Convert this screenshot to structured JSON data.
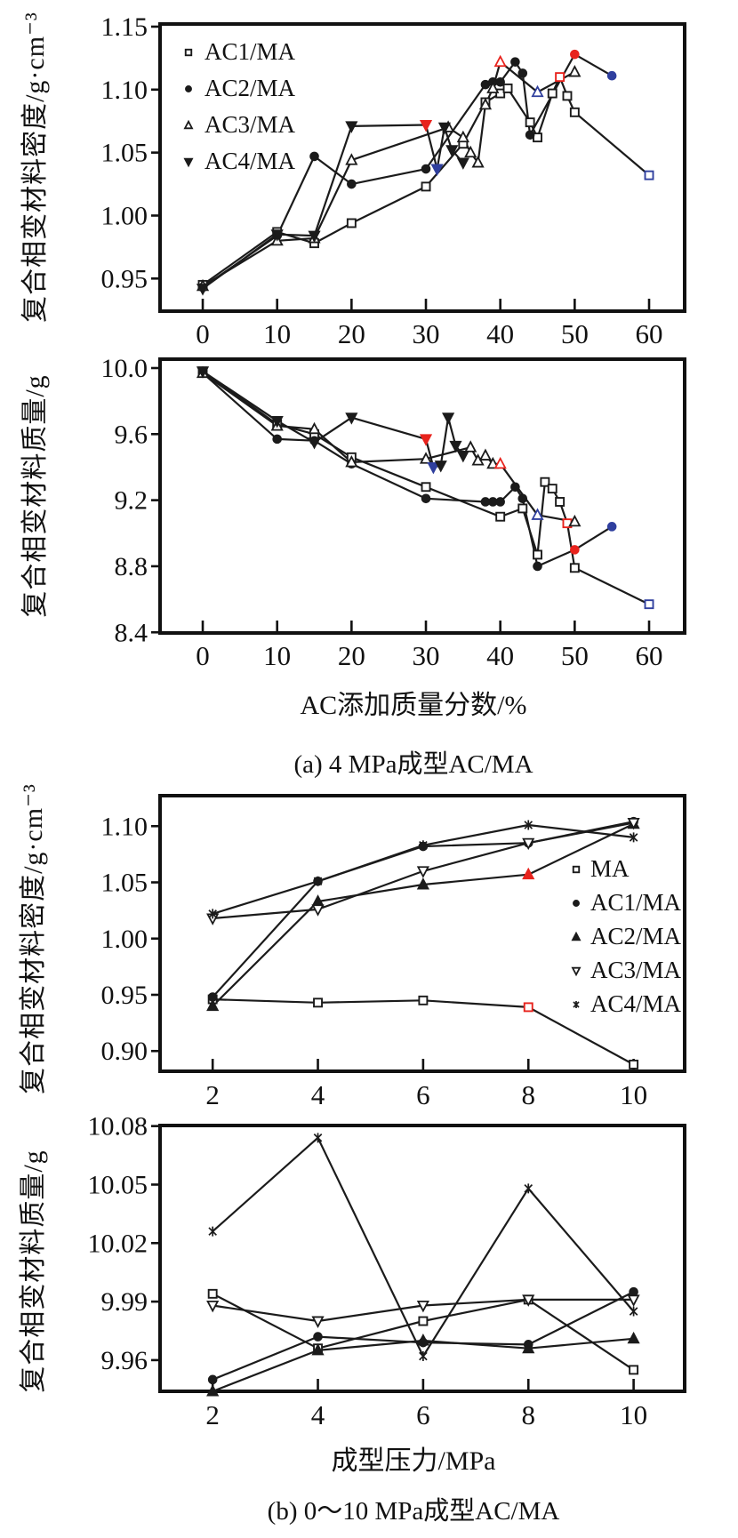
{
  "figure": {
    "background": "#ffffff",
    "colors": {
      "line": "#1b1b1b",
      "red": "#e8231d",
      "blue": "#2f3f9e",
      "text": "#111111"
    }
  },
  "chart_data": [
    {
      "id": "a1",
      "type": "line",
      "title": "",
      "xlabel": "",
      "ylabel": "复合相变材料密度/g·cm⁻³",
      "xlim": [
        -5.74,
        64.78
      ],
      "ylim": [
        0.9241,
        1.1521
      ],
      "grid": false,
      "xticks": [
        {
          "v": 0,
          "label": "0"
        },
        {
          "v": 10,
          "label": "10"
        },
        {
          "v": 20,
          "label": "20"
        },
        {
          "v": 30,
          "label": "30"
        },
        {
          "v": 40,
          "label": "40"
        },
        {
          "v": 50,
          "label": "50"
        },
        {
          "v": 60,
          "label": "60"
        }
      ],
      "yticks": [
        {
          "v": 0.95,
          "label": "0.95"
        },
        {
          "v": 1.0,
          "label": "1.00"
        },
        {
          "v": 1.05,
          "label": "1.05"
        },
        {
          "v": 1.1,
          "label": "1.10"
        },
        {
          "v": 1.15,
          "label": "1.15"
        }
      ],
      "legend": {
        "position": "upper-left",
        "items": [
          {
            "label": "AC1/MA",
            "marker": "square-open"
          },
          {
            "label": "AC2/MA",
            "marker": "circle-filled"
          },
          {
            "label": "AC3/MA",
            "marker": "triangle-up-open"
          },
          {
            "label": "AC4/MA",
            "marker": "triangle-down-filled"
          }
        ]
      },
      "series": [
        {
          "name": "AC1/MA",
          "marker": "square-open",
          "points": [
            {
              "x": 0,
              "y": 0.945
            },
            {
              "x": 10,
              "y": 0.987
            },
            {
              "x": 15,
              "y": 0.978
            },
            {
              "x": 20,
              "y": 0.994
            },
            {
              "x": 30,
              "y": 1.023
            },
            {
              "x": 35,
              "y": 1.057
            },
            {
              "x": 38,
              "y": 1.09
            },
            {
              "x": 40,
              "y": 1.097
            },
            {
              "x": 41,
              "y": 1.101
            },
            {
              "x": 44,
              "y": 1.074
            },
            {
              "x": 45,
              "y": 1.062
            },
            {
              "x": 47,
              "y": 1.097
            },
            {
              "x": 48,
              "y": 1.11,
              "c": "red"
            },
            {
              "x": 49,
              "y": 1.095
            },
            {
              "x": 50,
              "y": 1.082
            },
            {
              "x": 60,
              "y": 1.032,
              "c": "blue"
            }
          ]
        },
        {
          "name": "AC2/MA",
          "marker": "circle-filled",
          "points": [
            {
              "x": 0,
              "y": 0.943
            },
            {
              "x": 10,
              "y": 0.984
            },
            {
              "x": 15,
              "y": 1.047
            },
            {
              "x": 20,
              "y": 1.025
            },
            {
              "x": 30,
              "y": 1.037
            },
            {
              "x": 38,
              "y": 1.104
            },
            {
              "x": 39,
              "y": 1.106
            },
            {
              "x": 40,
              "y": 1.106
            },
            {
              "x": 42,
              "y": 1.122
            },
            {
              "x": 43,
              "y": 1.113
            },
            {
              "x": 44,
              "y": 1.064
            },
            {
              "x": 50,
              "y": 1.128,
              "c": "red"
            },
            {
              "x": 55,
              "y": 1.111,
              "c": "blue"
            }
          ]
        },
        {
          "name": "AC3/MA",
          "marker": "triangle-up-open",
          "points": [
            {
              "x": 0,
              "y": 0.944
            },
            {
              "x": 10,
              "y": 0.98
            },
            {
              "x": 15,
              "y": 0.982
            },
            {
              "x": 20,
              "y": 1.044
            },
            {
              "x": 33,
              "y": 1.07
            },
            {
              "x": 35,
              "y": 1.062
            },
            {
              "x": 36,
              "y": 1.05
            },
            {
              "x": 37,
              "y": 1.042
            },
            {
              "x": 38,
              "y": 1.088
            },
            {
              "x": 39,
              "y": 1.101
            },
            {
              "x": 40,
              "y": 1.122,
              "c": "red"
            },
            {
              "x": 45,
              "y": 1.098,
              "c": "blue"
            },
            {
              "x": 50,
              "y": 1.114
            }
          ]
        },
        {
          "name": "AC4/MA",
          "marker": "triangle-down-filled",
          "points": [
            {
              "x": 0,
              "y": 0.942
            },
            {
              "x": 10,
              "y": 0.985
            },
            {
              "x": 15,
              "y": 0.984
            },
            {
              "x": 20,
              "y": 1.071
            },
            {
              "x": 30,
              "y": 1.072,
              "c": "red"
            },
            {
              "x": 31.5,
              "y": 1.037,
              "c": "blue"
            },
            {
              "x": 32.5,
              "y": 1.07
            },
            {
              "x": 33.5,
              "y": 1.052
            },
            {
              "x": 35,
              "y": 1.042
            }
          ]
        }
      ]
    },
    {
      "id": "a2",
      "type": "line",
      "title": "",
      "xlabel": "AC添加质量分数/%",
      "caption": "(a) 4 MPa成型AC/MA",
      "ylabel": "复合相变材料质量/g",
      "xlim": [
        -5.74,
        64.78
      ],
      "ylim": [
        8.396,
        10.0538
      ],
      "grid": false,
      "xticks": [
        {
          "v": 0,
          "label": "0"
        },
        {
          "v": 10,
          "label": "10"
        },
        {
          "v": 20,
          "label": "20"
        },
        {
          "v": 30,
          "label": "30"
        },
        {
          "v": 40,
          "label": "40"
        },
        {
          "v": 50,
          "label": "50"
        },
        {
          "v": 60,
          "label": "60"
        }
      ],
      "yticks": [
        {
          "v": 8.4,
          "label": "8.4"
        },
        {
          "v": 8.8,
          "label": "8.8"
        },
        {
          "v": 9.2,
          "label": "9.2"
        },
        {
          "v": 9.6,
          "label": "9.6"
        },
        {
          "v": 10.0,
          "label": "10.0"
        }
      ],
      "legend": null,
      "series": [
        {
          "name": "AC1/MA",
          "marker": "square-open",
          "points": [
            {
              "x": 0,
              "y": 9.98
            },
            {
              "x": 10,
              "y": 9.66
            },
            {
              "x": 15,
              "y": 9.6
            },
            {
              "x": 20,
              "y": 9.46
            },
            {
              "x": 30,
              "y": 9.28
            },
            {
              "x": 40,
              "y": 9.1
            },
            {
              "x": 43,
              "y": 9.15
            },
            {
              "x": 45,
              "y": 8.87
            },
            {
              "x": 46,
              "y": 9.31
            },
            {
              "x": 47,
              "y": 9.27
            },
            {
              "x": 48,
              "y": 9.19
            },
            {
              "x": 49,
              "y": 9.06,
              "c": "red"
            },
            {
              "x": 50,
              "y": 8.79
            },
            {
              "x": 60,
              "y": 8.57,
              "c": "blue"
            }
          ]
        },
        {
          "name": "AC2/MA",
          "marker": "circle-filled",
          "points": [
            {
              "x": 0,
              "y": 9.97
            },
            {
              "x": 10,
              "y": 9.57
            },
            {
              "x": 15,
              "y": 9.56
            },
            {
              "x": 20,
              "y": 9.42
            },
            {
              "x": 30,
              "y": 9.21
            },
            {
              "x": 38,
              "y": 9.19
            },
            {
              "x": 39,
              "y": 9.19
            },
            {
              "x": 40,
              "y": 9.19
            },
            {
              "x": 42,
              "y": 9.28
            },
            {
              "x": 43,
              "y": 9.21
            },
            {
              "x": 45,
              "y": 8.8
            },
            {
              "x": 50,
              "y": 8.9,
              "c": "red"
            },
            {
              "x": 55,
              "y": 9.04,
              "c": "blue"
            }
          ]
        },
        {
          "name": "AC3/MA",
          "marker": "triangle-up-open",
          "points": [
            {
              "x": 0,
              "y": 9.97
            },
            {
              "x": 10,
              "y": 9.65
            },
            {
              "x": 15,
              "y": 9.63
            },
            {
              "x": 20,
              "y": 9.43
            },
            {
              "x": 30,
              "y": 9.45
            },
            {
              "x": 36,
              "y": 9.52
            },
            {
              "x": 37,
              "y": 9.44
            },
            {
              "x": 38,
              "y": 9.47
            },
            {
              "x": 39,
              "y": 9.42
            },
            {
              "x": 40,
              "y": 9.42,
              "c": "red"
            },
            {
              "x": 45,
              "y": 9.11,
              "c": "blue"
            },
            {
              "x": 50,
              "y": 9.07
            }
          ]
        },
        {
          "name": "AC4/MA",
          "marker": "triangle-down-filled",
          "points": [
            {
              "x": 0,
              "y": 9.98
            },
            {
              "x": 10,
              "y": 9.68
            },
            {
              "x": 15,
              "y": 9.55
            },
            {
              "x": 20,
              "y": 9.7
            },
            {
              "x": 30,
              "y": 9.57,
              "c": "red"
            },
            {
              "x": 31,
              "y": 9.4,
              "c": "blue"
            },
            {
              "x": 32,
              "y": 9.41
            },
            {
              "x": 33,
              "y": 9.7
            },
            {
              "x": 34,
              "y": 9.53
            },
            {
              "x": 35,
              "y": 9.47
            }
          ]
        }
      ]
    },
    {
      "id": "b1",
      "type": "line",
      "title": "",
      "xlabel": "",
      "ylabel": "复合相变材料密度/g·cm⁻³",
      "xlim": [
        1.0,
        10.97
      ],
      "ylim": [
        0.882,
        1.1271
      ],
      "grid": false,
      "xticks": [
        {
          "v": 2,
          "label": "2"
        },
        {
          "v": 4,
          "label": "4"
        },
        {
          "v": 6,
          "label": "6"
        },
        {
          "v": 8,
          "label": "8"
        },
        {
          "v": 10,
          "label": "10"
        }
      ],
      "yticks": [
        {
          "v": 0.9,
          "label": "0.90"
        },
        {
          "v": 0.95,
          "label": "0.95"
        },
        {
          "v": 1.0,
          "label": "1.00"
        },
        {
          "v": 1.05,
          "label": "1.05"
        },
        {
          "v": 1.1,
          "label": "1.10"
        }
      ],
      "legend": {
        "position": "right",
        "items": [
          {
            "label": "MA",
            "marker": "square-open"
          },
          {
            "label": "AC1/MA",
            "marker": "circle-filled"
          },
          {
            "label": "AC2/MA",
            "marker": "triangle-up-filled"
          },
          {
            "label": "AC3/MA",
            "marker": "triangle-down-open"
          },
          {
            "label": "AC4/MA",
            "marker": "asterisk"
          }
        ]
      },
      "series": [
        {
          "name": "MA",
          "marker": "square-open",
          "points": [
            {
              "x": 2,
              "y": 0.946
            },
            {
              "x": 4,
              "y": 0.943
            },
            {
              "x": 6,
              "y": 0.945
            },
            {
              "x": 8,
              "y": 0.939,
              "c": "red"
            },
            {
              "x": 10,
              "y": 0.888
            }
          ]
        },
        {
          "name": "AC1/MA",
          "marker": "circle-filled",
          "points": [
            {
              "x": 2,
              "y": 0.948
            },
            {
              "x": 4,
              "y": 1.051
            },
            {
              "x": 6,
              "y": 1.082
            },
            {
              "x": 8,
              "y": 1.085
            },
            {
              "x": 10,
              "y": 1.104
            }
          ]
        },
        {
          "name": "AC2/MA",
          "marker": "triangle-up-filled",
          "points": [
            {
              "x": 2,
              "y": 0.94
            },
            {
              "x": 4,
              "y": 1.033
            },
            {
              "x": 6,
              "y": 1.048
            },
            {
              "x": 8,
              "y": 1.057,
              "c": "red"
            },
            {
              "x": 10,
              "y": 1.102
            }
          ]
        },
        {
          "name": "AC3/MA",
          "marker": "triangle-down-open",
          "points": [
            {
              "x": 2,
              "y": 1.018
            },
            {
              "x": 4,
              "y": 1.026
            },
            {
              "x": 6,
              "y": 1.06
            },
            {
              "x": 8,
              "y": 1.085
            },
            {
              "x": 10,
              "y": 1.103
            }
          ]
        },
        {
          "name": "AC4/MA",
          "marker": "asterisk",
          "points": [
            {
              "x": 2,
              "y": 1.022
            },
            {
              "x": 4,
              "y": 1.051
            },
            {
              "x": 6,
              "y": 1.083
            },
            {
              "x": 8,
              "y": 1.101
            },
            {
              "x": 10,
              "y": 1.09
            }
          ]
        }
      ]
    },
    {
      "id": "b2",
      "type": "line",
      "title": "",
      "xlabel": "成型压力/MPa",
      "caption": "(b) 0～10 MPa成型AC/MA",
      "ylabel": "复合相变材料质量/g",
      "xlim": [
        1.0,
        10.97
      ],
      "ylim": [
        9.944,
        10.0803
      ],
      "grid": false,
      "xticks": [
        {
          "v": 2,
          "label": "2"
        },
        {
          "v": 4,
          "label": "4"
        },
        {
          "v": 6,
          "label": "6"
        },
        {
          "v": 8,
          "label": "8"
        },
        {
          "v": 10,
          "label": "10"
        }
      ],
      "yticks": [
        {
          "v": 9.96,
          "label": "9.96"
        },
        {
          "v": 9.99,
          "label": "9.99"
        },
        {
          "v": 10.02,
          "label": "10.02"
        },
        {
          "v": 10.05,
          "label": "10.05"
        },
        {
          "v": 10.08,
          "label": "10.08"
        }
      ],
      "legend": null,
      "series": [
        {
          "name": "MA",
          "marker": "square-open",
          "points": [
            {
              "x": 2,
              "y": 9.994
            },
            {
              "x": 4,
              "y": 9.966
            },
            {
              "x": 6,
              "y": 9.98
            },
            {
              "x": 8,
              "y": 9.991
            },
            {
              "x": 10,
              "y": 9.955
            }
          ]
        },
        {
          "name": "AC1/MA",
          "marker": "circle-filled",
          "points": [
            {
              "x": 2,
              "y": 9.95
            },
            {
              "x": 4,
              "y": 9.972
            },
            {
              "x": 6,
              "y": 9.969
            },
            {
              "x": 8,
              "y": 9.968
            },
            {
              "x": 10,
              "y": 9.995
            }
          ]
        },
        {
          "name": "AC2/MA",
          "marker": "triangle-up-filled",
          "points": [
            {
              "x": 2,
              "y": 9.944
            },
            {
              "x": 4,
              "y": 9.965
            },
            {
              "x": 6,
              "y": 9.97
            },
            {
              "x": 8,
              "y": 9.966
            },
            {
              "x": 10,
              "y": 9.971
            }
          ]
        },
        {
          "name": "AC3/MA",
          "marker": "triangle-down-open",
          "points": [
            {
              "x": 2,
              "y": 9.988
            },
            {
              "x": 4,
              "y": 9.98
            },
            {
              "x": 6,
              "y": 9.988
            },
            {
              "x": 8,
              "y": 9.991
            },
            {
              "x": 10,
              "y": 9.991
            }
          ]
        },
        {
          "name": "AC4/MA",
          "marker": "asterisk",
          "points": [
            {
              "x": 2,
              "y": 10.026
            },
            {
              "x": 4,
              "y": 10.074
            },
            {
              "x": 6,
              "y": 9.962
            },
            {
              "x": 8,
              "y": 10.048
            },
            {
              "x": 10,
              "y": 9.985
            }
          ]
        }
      ]
    }
  ]
}
